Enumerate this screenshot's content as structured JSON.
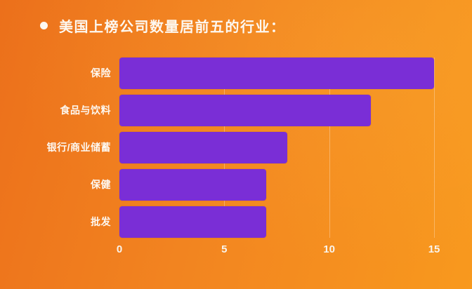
{
  "title": {
    "bullet_icon": "circle",
    "text": "美国上榜公司数量居前五的行业："
  },
  "chart_data": {
    "type": "bar",
    "orientation": "horizontal",
    "title": "美国上榜公司数量居前五的行业：",
    "categories": [
      "保险",
      "食品与饮料",
      "银行/商业储蓄",
      "保健",
      "批发"
    ],
    "values": [
      15,
      12,
      8,
      7,
      7
    ],
    "xlabel": "",
    "ylabel": "",
    "x_ticks": [
      0,
      5,
      10,
      15
    ],
    "xlim": [
      0,
      15.4
    ],
    "grid": "vertical gridlines at ticks, faint white",
    "legend": "none"
  },
  "colors": {
    "bar": "#7a2ed6",
    "background_dark": "#ec701b",
    "background_light": "#f8991e",
    "text": "#fdf8f1",
    "gridline": "rgba(255,255,255,0.30)"
  }
}
